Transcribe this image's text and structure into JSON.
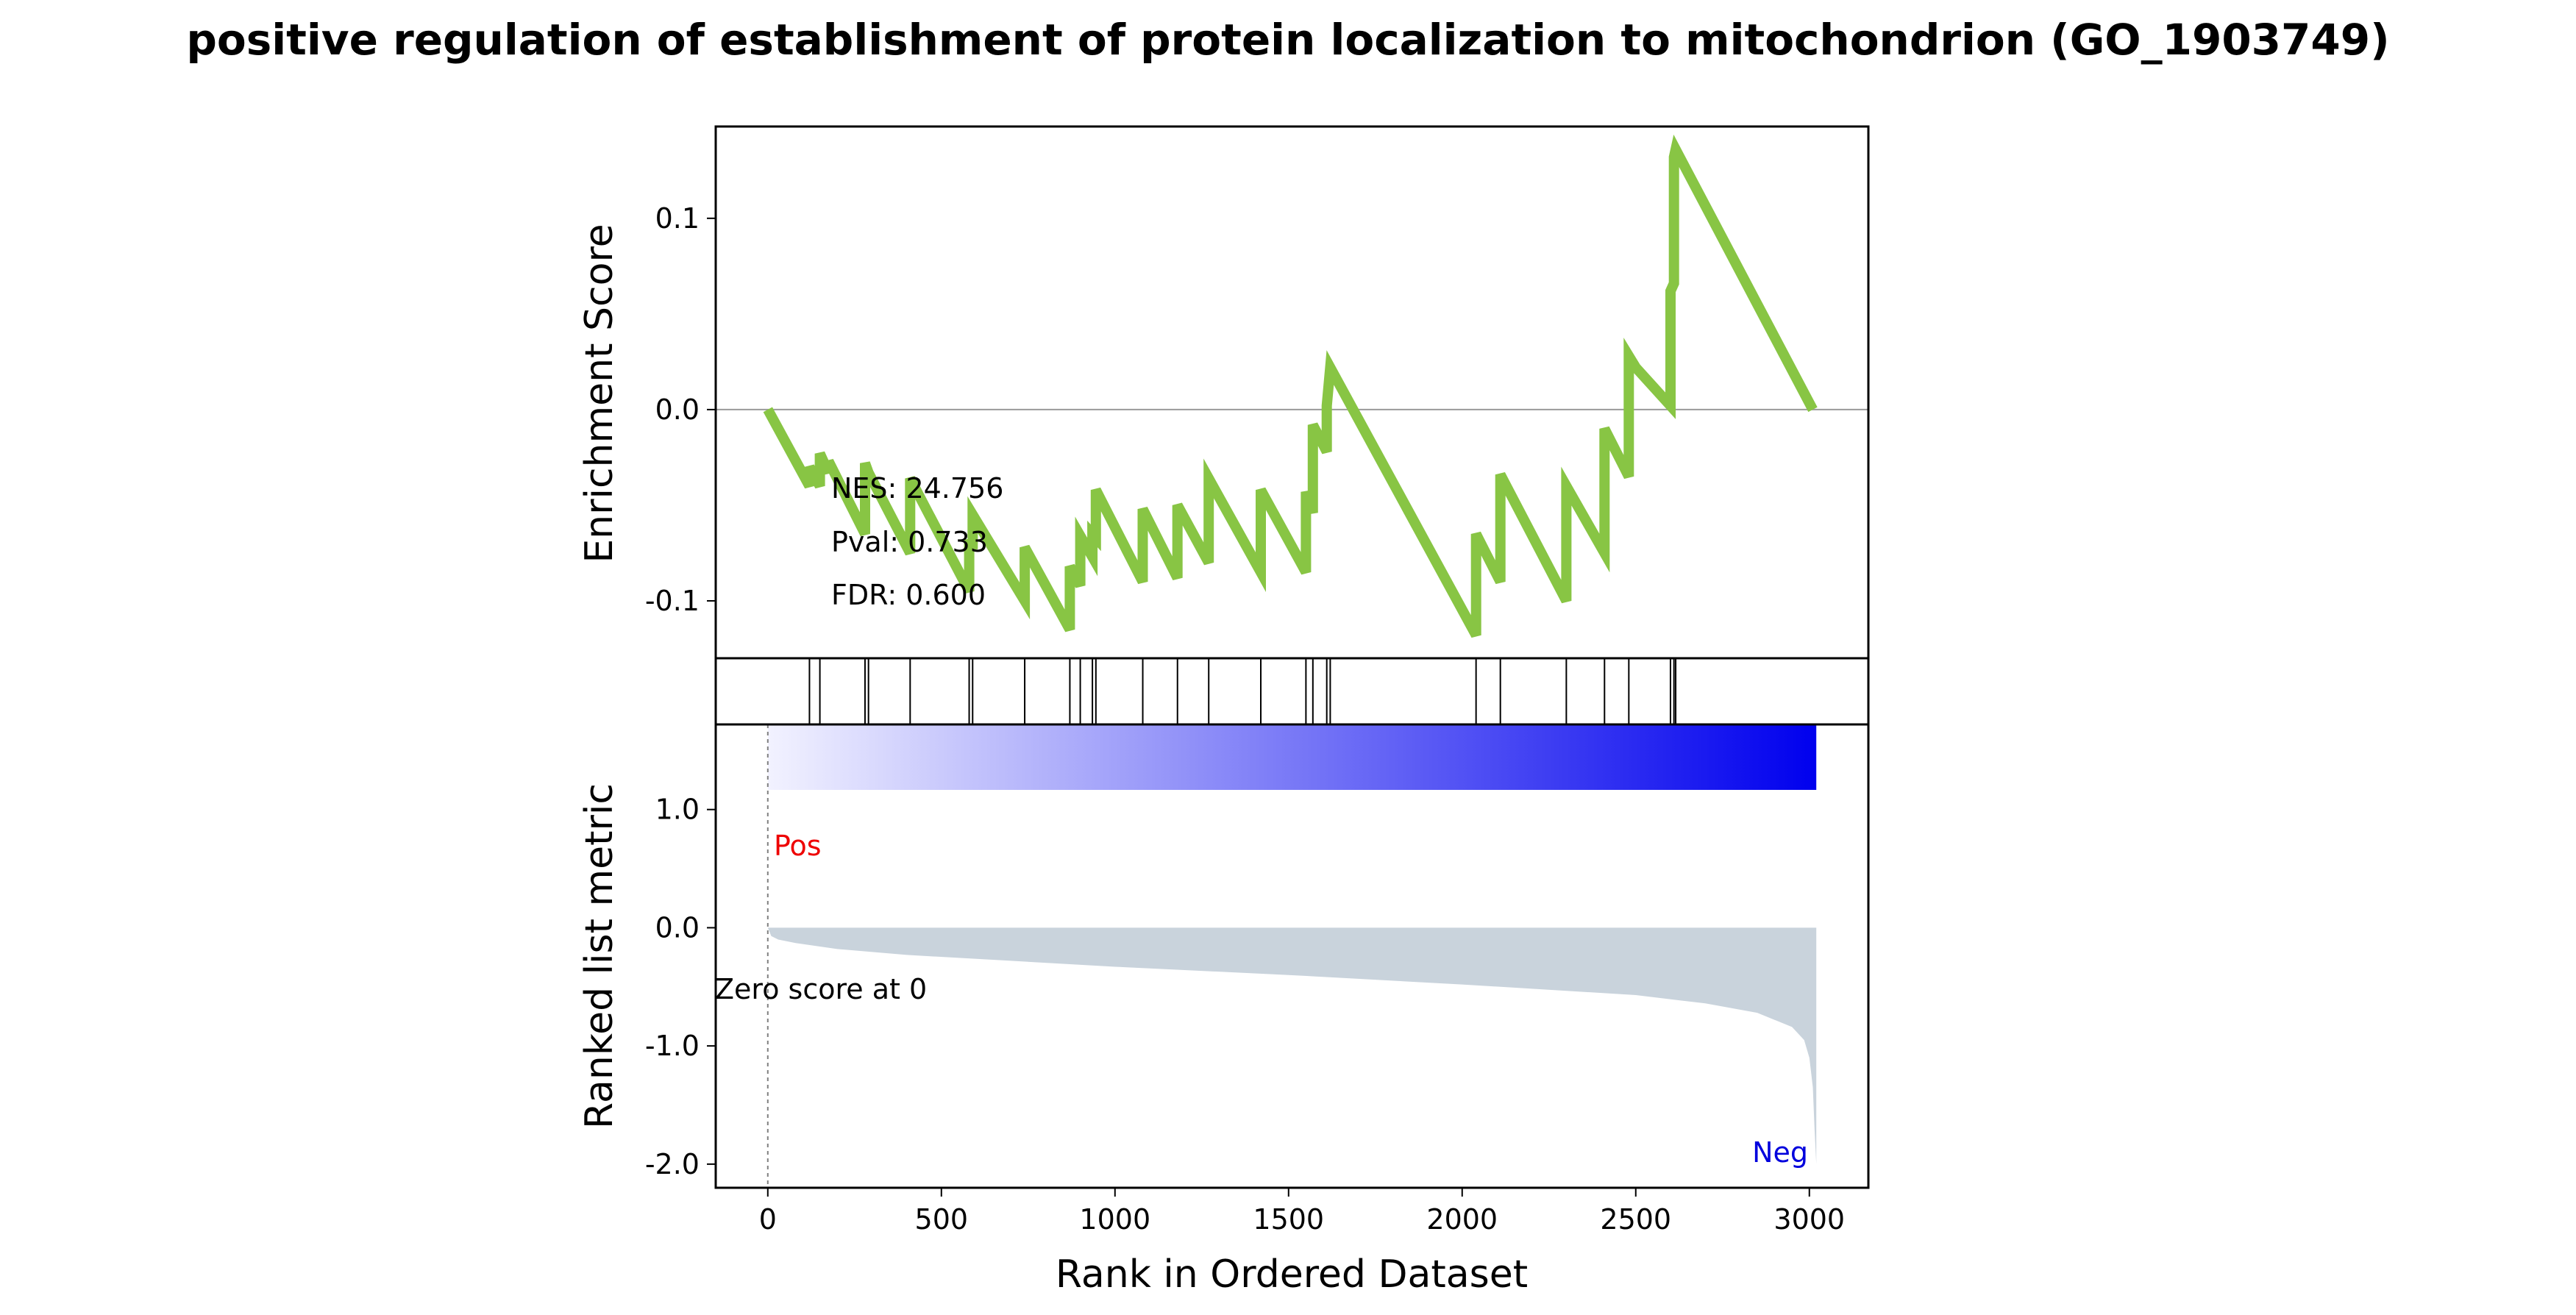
{
  "chart_data": {
    "type": "line",
    "title": "positive regulation of establishment of protein localization to mitochondrion (GO_1903749)",
    "xlabel": "Rank in Ordered Dataset",
    "xlim": [
      -150,
      3170
    ],
    "x_ticks": [
      "0",
      "500",
      "1000",
      "1500",
      "2000",
      "2500",
      "3000"
    ],
    "x_tick_values": [
      0,
      500,
      1000,
      1500,
      2000,
      2500,
      3000
    ],
    "panels": {
      "enrichment": {
        "ylabel": "Enrichment Score",
        "ylim": [
          -0.13,
          0.148
        ],
        "y_ticks": [
          "0.1",
          "0.0",
          "-0.1"
        ],
        "y_tick_values": [
          0.1,
          0.0,
          -0.1
        ],
        "line_color": "#88c544",
        "zero_line": true,
        "stats": {
          "nes": "NES: 24.756",
          "pval": "Pval: 0.733",
          "fdr": "FDR: 0.600"
        },
        "series": [
          {
            "x": [
              0,
              120,
              120,
              150,
              150,
              175,
              175,
              280,
              280,
              290,
              290,
              410,
              410,
              580,
              580,
              590,
              590,
              740,
              740,
              870,
              870,
              900,
              900,
              935,
              935,
              945,
              945,
              1080,
              1080,
              1180,
              1180,
              1270,
              1270,
              1420,
              1420,
              1550,
              1550,
              1570,
              1570,
              1610,
              1610,
              1620,
              1620,
              2040,
              2040,
              2110,
              2110,
              2300,
              2300,
              2410,
              2410,
              2480,
              2480,
              2500,
              2500,
              2600,
              2600,
              2610,
              2610,
              2615,
              2615,
              3010
            ],
            "y": [
              0.0,
              -0.04,
              -0.03,
              -0.04,
              -0.023,
              -0.033,
              -0.027,
              -0.065,
              -0.028,
              -0.033,
              -0.033,
              -0.075,
              -0.036,
              -0.095,
              -0.068,
              -0.073,
              -0.055,
              -0.1,
              -0.072,
              -0.115,
              -0.082,
              -0.092,
              -0.066,
              -0.077,
              -0.065,
              -0.067,
              -0.042,
              -0.09,
              -0.052,
              -0.088,
              -0.05,
              -0.08,
              -0.036,
              -0.085,
              -0.042,
              -0.085,
              -0.043,
              -0.054,
              -0.008,
              -0.022,
              0.002,
              0.022,
              0.022,
              -0.118,
              -0.065,
              -0.09,
              -0.034,
              -0.1,
              -0.04,
              -0.075,
              -0.01,
              -0.035,
              0.028,
              0.022,
              0.022,
              0.002,
              0.062,
              0.066,
              0.132,
              0.136,
              0.136,
              0.0
            ]
          }
        ]
      },
      "hits": {
        "positions": [
          120,
          150,
          280,
          290,
          410,
          580,
          590,
          740,
          870,
          900,
          935,
          945,
          1080,
          1180,
          1270,
          1420,
          1550,
          1570,
          1610,
          1620,
          2040,
          2110,
          2300,
          2410,
          2480,
          2600,
          2610,
          2615
        ]
      },
      "ranked": {
        "ylabel": "Ranked list metric",
        "ylim": [
          -2.2,
          1.72
        ],
        "y_ticks": [
          "1.0",
          "0.0",
          "-1.0",
          "-2.0"
        ],
        "y_tick_values": [
          1.0,
          0.0,
          -1.0,
          -2.0
        ],
        "fill_color": "#c9d3dc",
        "gradient_colors": [
          "#f2f2ff",
          "#0000ee"
        ],
        "pos_label": "Pos",
        "neg_label": "Neg",
        "pos_color": "#ee0000",
        "neg_color": "#0000dd",
        "zero_score_label": "Zero score at 0",
        "series": [
          {
            "x": [
              0,
              10,
              30,
              80,
              200,
              400,
              700,
              1000,
              1500,
              2000,
              2500,
              2700,
              2850,
              2950,
              2985,
              3000,
              3010,
              3015,
              3020
            ],
            "y": [
              0.0,
              -0.07,
              -0.1,
              -0.13,
              -0.18,
              -0.23,
              -0.28,
              -0.33,
              -0.4,
              -0.48,
              -0.57,
              -0.64,
              -0.72,
              -0.84,
              -0.95,
              -1.1,
              -1.35,
              -1.7,
              -2.0
            ]
          }
        ]
      }
    }
  }
}
